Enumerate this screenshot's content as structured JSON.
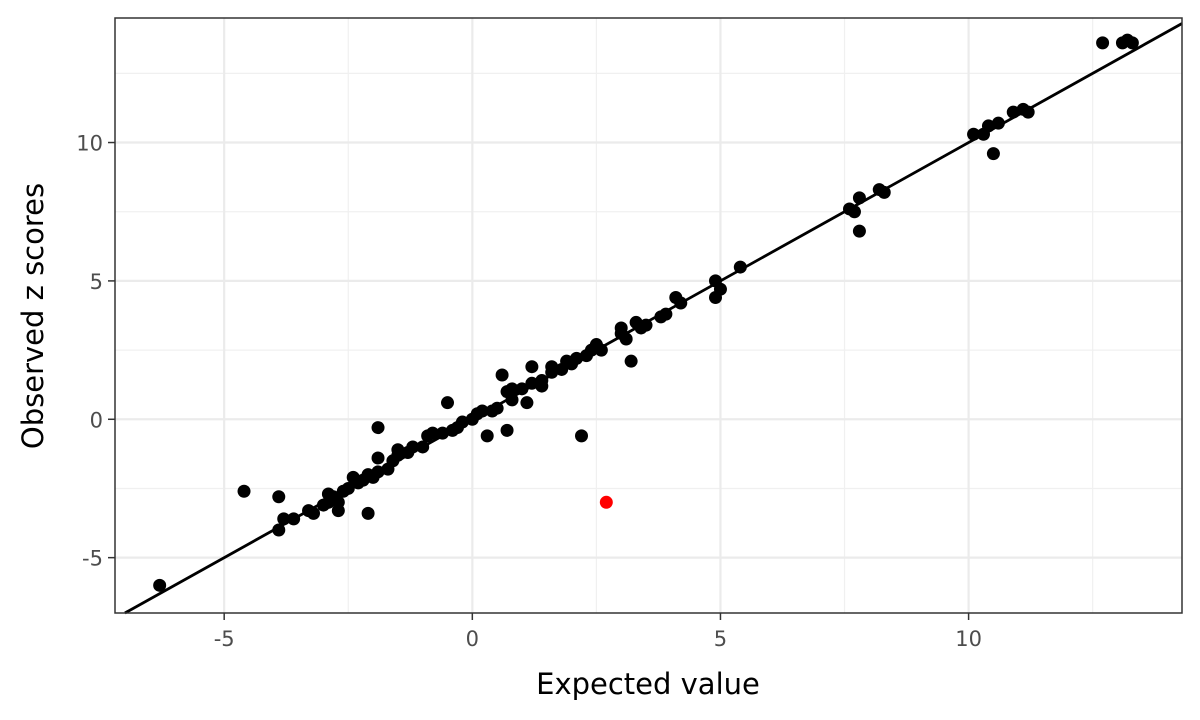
{
  "chart_data": {
    "type": "scatter",
    "title": "",
    "xlabel": "Expected value",
    "ylabel": "Observed z scores",
    "xlim": [
      -7.2,
      14.3
    ],
    "ylim": [
      -7.0,
      14.5
    ],
    "x_ticks": [
      -5,
      0,
      5,
      10
    ],
    "y_ticks": [
      -5,
      0,
      5,
      10
    ],
    "x_tick_labels": [
      "-5",
      "0",
      "5",
      "10"
    ],
    "y_tick_labels": [
      "-5",
      "0",
      "5",
      "10"
    ],
    "grid": true,
    "theme": "bw",
    "legend": "none",
    "reference_line": {
      "slope": 1.0,
      "intercept": 0.0,
      "color": "#000000"
    },
    "point_color": "#000000",
    "highlight_color": "#ff0000",
    "points": [
      {
        "x": -6.3,
        "y": -6.0
      },
      {
        "x": -4.6,
        "y": -2.6
      },
      {
        "x": -3.9,
        "y": -2.8
      },
      {
        "x": -3.9,
        "y": -4.0
      },
      {
        "x": -3.8,
        "y": -3.6
      },
      {
        "x": -3.6,
        "y": -3.6
      },
      {
        "x": -3.3,
        "y": -3.3
      },
      {
        "x": -3.2,
        "y": -3.4
      },
      {
        "x": -3.0,
        "y": -3.1
      },
      {
        "x": -2.9,
        "y": -2.7
      },
      {
        "x": -2.9,
        "y": -3.0
      },
      {
        "x": -2.8,
        "y": -2.8
      },
      {
        "x": -2.7,
        "y": -3.0
      },
      {
        "x": -2.7,
        "y": -3.3
      },
      {
        "x": -2.6,
        "y": -2.6
      },
      {
        "x": -2.5,
        "y": -2.5
      },
      {
        "x": -2.4,
        "y": -2.1
      },
      {
        "x": -2.3,
        "y": -2.3
      },
      {
        "x": -2.2,
        "y": -2.2
      },
      {
        "x": -2.1,
        "y": -2.0
      },
      {
        "x": -2.1,
        "y": -3.4
      },
      {
        "x": -2.0,
        "y": -2.1
      },
      {
        "x": -1.9,
        "y": -1.4
      },
      {
        "x": -1.9,
        "y": -1.9
      },
      {
        "x": -1.9,
        "y": -0.3
      },
      {
        "x": -1.7,
        "y": -1.8
      },
      {
        "x": -1.6,
        "y": -1.5
      },
      {
        "x": -1.5,
        "y": -1.1
      },
      {
        "x": -1.5,
        "y": -1.3
      },
      {
        "x": -1.3,
        "y": -1.2
      },
      {
        "x": -1.2,
        "y": -1.0
      },
      {
        "x": -1.0,
        "y": -1.0
      },
      {
        "x": -0.9,
        "y": -0.6
      },
      {
        "x": -0.8,
        "y": -0.5
      },
      {
        "x": -0.6,
        "y": -0.5
      },
      {
        "x": -0.5,
        "y": 0.6
      },
      {
        "x": -0.4,
        "y": -0.4
      },
      {
        "x": -0.3,
        "y": -0.3
      },
      {
        "x": -0.2,
        "y": -0.1
      },
      {
        "x": 0.0,
        "y": 0.0
      },
      {
        "x": 0.1,
        "y": 0.2
      },
      {
        "x": 0.2,
        "y": 0.3
      },
      {
        "x": 0.3,
        "y": -0.6
      },
      {
        "x": 0.4,
        "y": 0.3
      },
      {
        "x": 0.5,
        "y": 0.4
      },
      {
        "x": 0.6,
        "y": 1.6
      },
      {
        "x": 0.7,
        "y": -0.4
      },
      {
        "x": 0.7,
        "y": 1.0
      },
      {
        "x": 0.8,
        "y": 0.7
      },
      {
        "x": 0.8,
        "y": 1.1
      },
      {
        "x": 1.0,
        "y": 1.1
      },
      {
        "x": 1.1,
        "y": 0.6
      },
      {
        "x": 1.2,
        "y": 1.3
      },
      {
        "x": 1.2,
        "y": 1.9
      },
      {
        "x": 1.4,
        "y": 1.4
      },
      {
        "x": 1.4,
        "y": 1.2
      },
      {
        "x": 1.6,
        "y": 1.7
      },
      {
        "x": 1.6,
        "y": 1.9
      },
      {
        "x": 1.8,
        "y": 1.8
      },
      {
        "x": 1.9,
        "y": 2.1
      },
      {
        "x": 2.0,
        "y": 2.0
      },
      {
        "x": 2.1,
        "y": 2.2
      },
      {
        "x": 2.2,
        "y": -0.6
      },
      {
        "x": 2.3,
        "y": 2.3
      },
      {
        "x": 2.4,
        "y": 2.5
      },
      {
        "x": 2.5,
        "y": 2.7
      },
      {
        "x": 2.6,
        "y": 2.5
      },
      {
        "x": 3.0,
        "y": 3.1
      },
      {
        "x": 3.0,
        "y": 3.3
      },
      {
        "x": 3.1,
        "y": 2.9
      },
      {
        "x": 3.2,
        "y": 2.1
      },
      {
        "x": 3.3,
        "y": 3.5
      },
      {
        "x": 3.4,
        "y": 3.3
      },
      {
        "x": 3.5,
        "y": 3.4
      },
      {
        "x": 3.8,
        "y": 3.7
      },
      {
        "x": 3.9,
        "y": 3.8
      },
      {
        "x": 4.1,
        "y": 4.4
      },
      {
        "x": 4.2,
        "y": 4.2
      },
      {
        "x": 4.9,
        "y": 5.0
      },
      {
        "x": 4.9,
        "y": 4.4
      },
      {
        "x": 5.0,
        "y": 4.7
      },
      {
        "x": 5.4,
        "y": 5.5
      },
      {
        "x": 7.6,
        "y": 7.6
      },
      {
        "x": 7.7,
        "y": 7.5
      },
      {
        "x": 7.8,
        "y": 8.0
      },
      {
        "x": 7.8,
        "y": 6.8
      },
      {
        "x": 8.2,
        "y": 8.3
      },
      {
        "x": 8.3,
        "y": 8.2
      },
      {
        "x": 10.1,
        "y": 10.3
      },
      {
        "x": 10.3,
        "y": 10.3
      },
      {
        "x": 10.4,
        "y": 10.6
      },
      {
        "x": 10.5,
        "y": 9.6
      },
      {
        "x": 10.6,
        "y": 10.7
      },
      {
        "x": 10.9,
        "y": 11.1
      },
      {
        "x": 11.1,
        "y": 11.2
      },
      {
        "x": 11.2,
        "y": 11.1
      },
      {
        "x": 12.7,
        "y": 13.6
      },
      {
        "x": 13.1,
        "y": 13.6
      },
      {
        "x": 13.2,
        "y": 13.7
      },
      {
        "x": 13.3,
        "y": 13.6
      }
    ],
    "highlight_points": [
      {
        "x": 2.7,
        "y": -3.0
      }
    ]
  }
}
